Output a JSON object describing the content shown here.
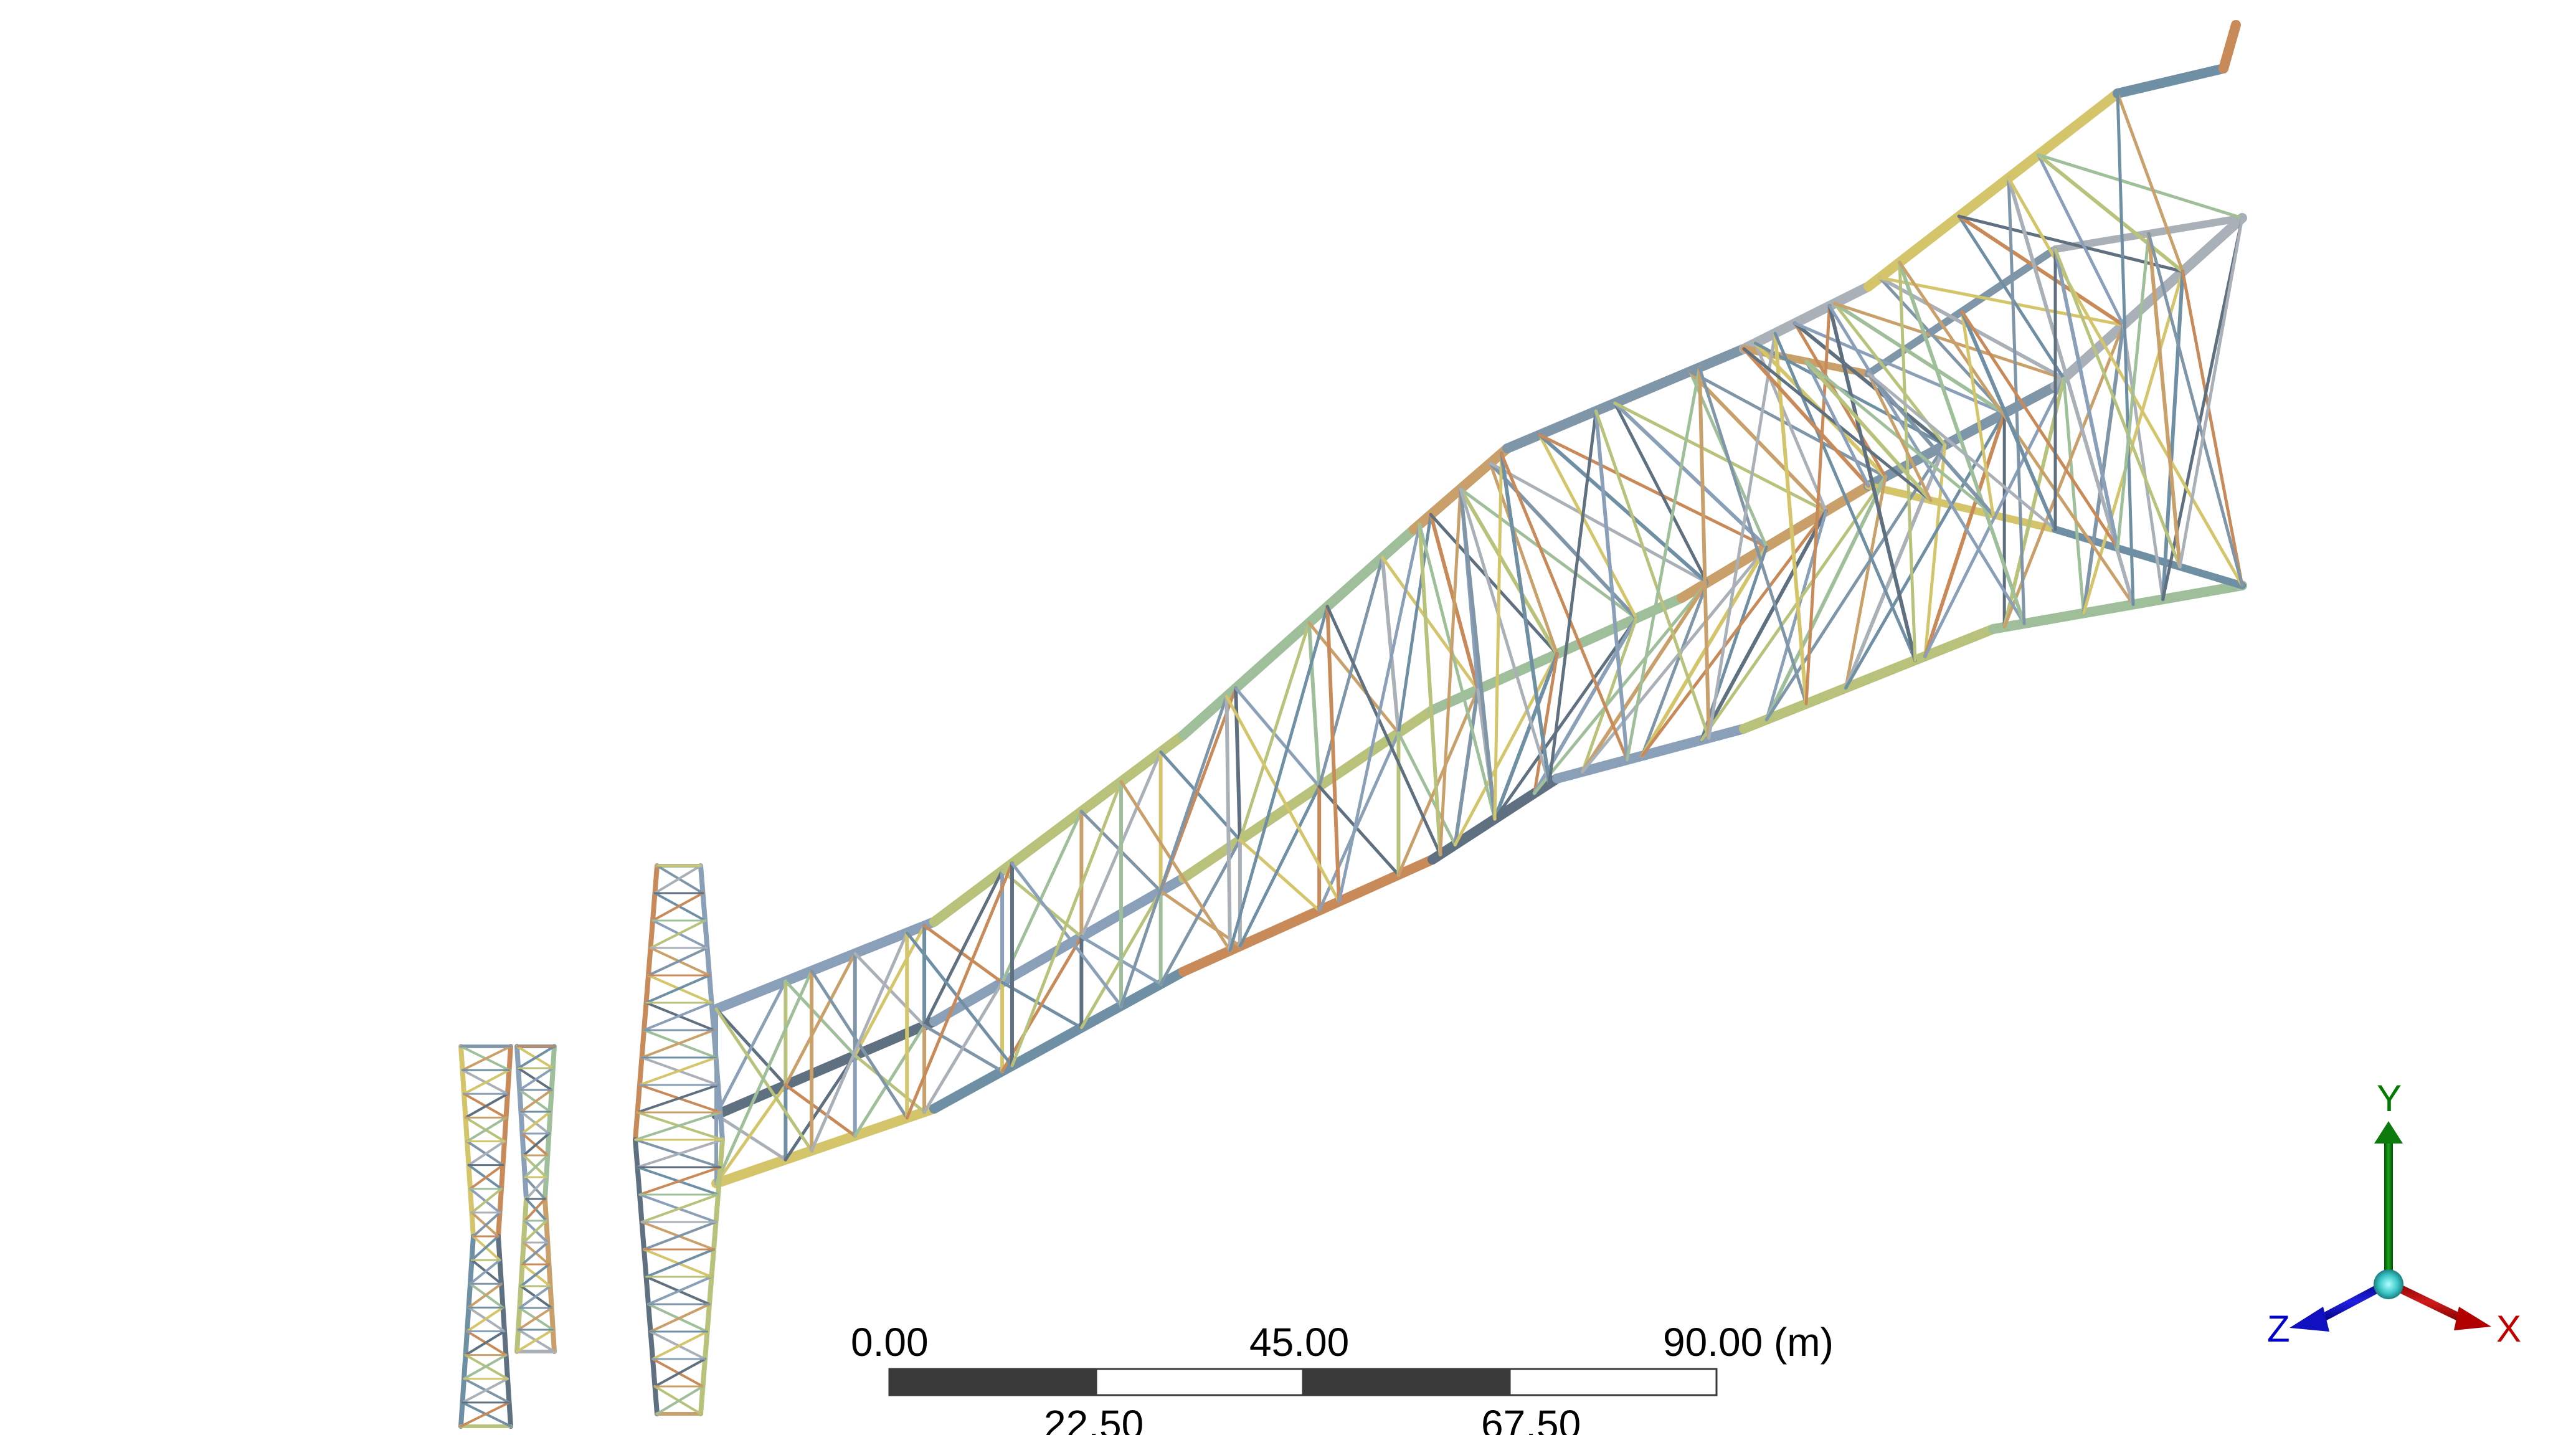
{
  "scale_bar": {
    "labels_top": [
      "0.00",
      "45.00",
      "90.00 (m)"
    ],
    "labels_bottom": [
      "22.50",
      "67.50"
    ],
    "dark_color": "#3a3a3a",
    "light_color": "#ffffff"
  },
  "triad": {
    "x_label": "X",
    "y_label": "Y",
    "z_label": "Z",
    "x_color": "#c00000",
    "y_color": "#007a00",
    "z_color": "#0000cc",
    "origin_color": "#3fc9c9"
  },
  "model": {
    "description_icon": "truss-tower-model",
    "member_colors": [
      "#8a9fb8",
      "#b8c27a",
      "#9fbf9a",
      "#c9a06a",
      "#7f95a8",
      "#a9b0b8",
      "#d4c46a",
      "#6f8fa5",
      "#c98a5a",
      "#5f7080"
    ]
  }
}
